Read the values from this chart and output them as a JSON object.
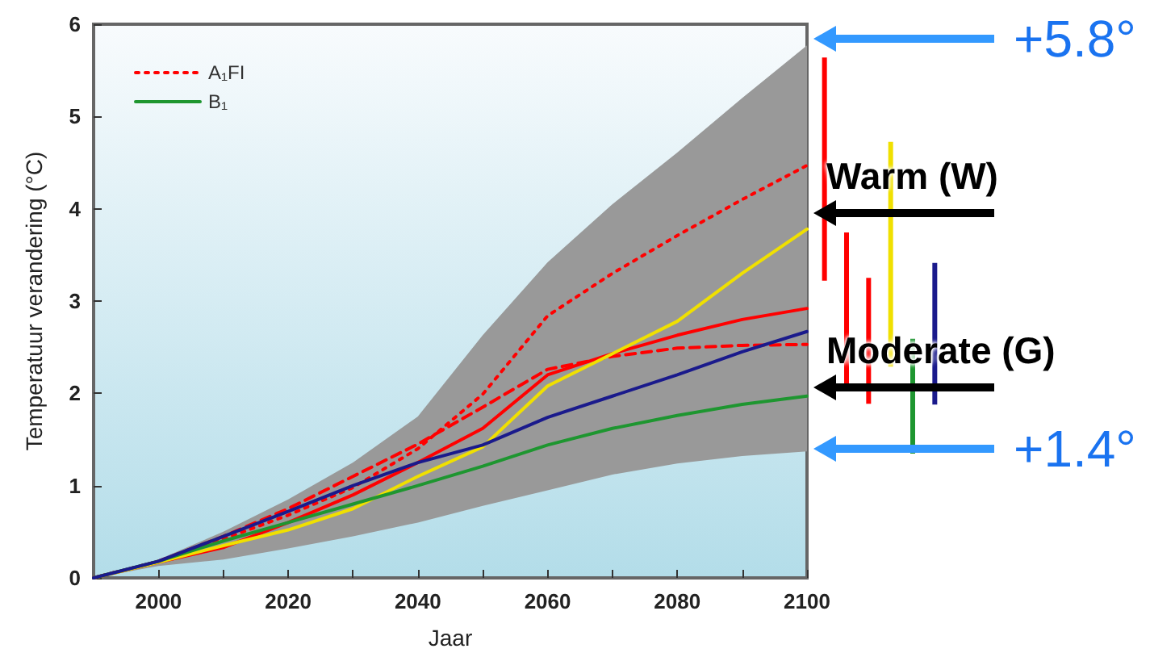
{
  "chart_data": [
    {
      "type": "line",
      "xlabel": "Jaar",
      "ylabel": "Temperatuur verandering (°C)",
      "x": [
        1990,
        2000,
        2010,
        2020,
        2030,
        2040,
        2050,
        2060,
        2070,
        2080,
        2090,
        2100
      ],
      "xlim": [
        1990,
        2100
      ],
      "xticks": [
        2000,
        {
          "value": 2010,
          "label": null
        },
        2020,
        {
          "value": 2030,
          "label": null
        },
        2040,
        {
          "value": 2050,
          "label": null
        },
        2060,
        {
          "value": 2070,
          "label": null
        },
        2080,
        {
          "value": 2090,
          "label": null
        },
        2100
      ],
      "ylim": [
        0,
        6
      ],
      "yticks": [
        0,
        1,
        2,
        3,
        4,
        5,
        6
      ],
      "legend": "top left",
      "series": [
        {
          "name": "A₁FI",
          "color": "#ff0000",
          "line_style": "dotted",
          "values": [
            0,
            0.18,
            0.42,
            0.68,
            0.98,
            1.4,
            1.99,
            2.84,
            3.3,
            3.71,
            4.1,
            4.47
          ]
        },
        {
          "color": "#ff0000",
          "line_style": "solid",
          "values": [
            0,
            0.17,
            0.33,
            0.6,
            0.9,
            1.25,
            1.62,
            2.2,
            2.43,
            2.63,
            2.8,
            2.92
          ]
        },
        {
          "color": "#ff0000",
          "line_style": "dashed",
          "values": [
            0,
            0.18,
            0.45,
            0.75,
            1.1,
            1.45,
            1.85,
            2.26,
            2.4,
            2.49,
            2.52,
            2.53
          ]
        },
        {
          "color": "#f0e000",
          "line_style": "solid",
          "values": [
            0,
            0.17,
            0.35,
            0.52,
            0.75,
            1.1,
            1.42,
            2.08,
            2.43,
            2.78,
            3.3,
            3.78
          ]
        },
        {
          "name": "B₁",
          "color": "#1e9630",
          "line_style": "solid",
          "values": [
            0,
            0.18,
            0.4,
            0.6,
            0.8,
            1.0,
            1.21,
            1.44,
            1.62,
            1.76,
            1.88,
            1.97
          ]
        },
        {
          "color": "#1a1a8c",
          "lower": [
            0,
            0.13,
            0.2,
            0.32,
            0.45,
            0.6,
            0.78,
            0.95,
            1.12,
            1.24,
            1.32,
            1.37
          ],
          "upper": [
            0,
            0.2,
            0.5,
            0.85,
            1.25,
            1.75,
            2.63,
            3.42,
            4.05,
            4.61,
            5.2,
            5.77
          ],
          "line_style": "solid",
          "values": [
            0,
            0.18,
            0.45,
            0.72,
            1.0,
            1.25,
            1.44,
            1.74,
            1.97,
            2.2,
            2.45,
            2.67
          ]
        }
      ],
      "annotations": [
        "+5.8°",
        "Warm (W)",
        "Moderate (G)",
        "+1.4°"
      ]
    },
    {
      "type": "bar",
      "categories": [
        null,
        null,
        null,
        null,
        null,
        null
      ],
      "ylim": [
        0,
        6
      ],
      "base": [
        3.23,
        2.1,
        1.9,
        2.3,
        1.36,
        1.89
      ],
      "values": [
        2.41,
        1.65,
        1.36,
        2.43,
        1.24,
        1.53
      ],
      "colors": [
        "#ff0000",
        "#ff0000",
        "#ff0000",
        "#f0e000",
        "#1e9630",
        "#1a1a8c"
      ]
    }
  ]
}
